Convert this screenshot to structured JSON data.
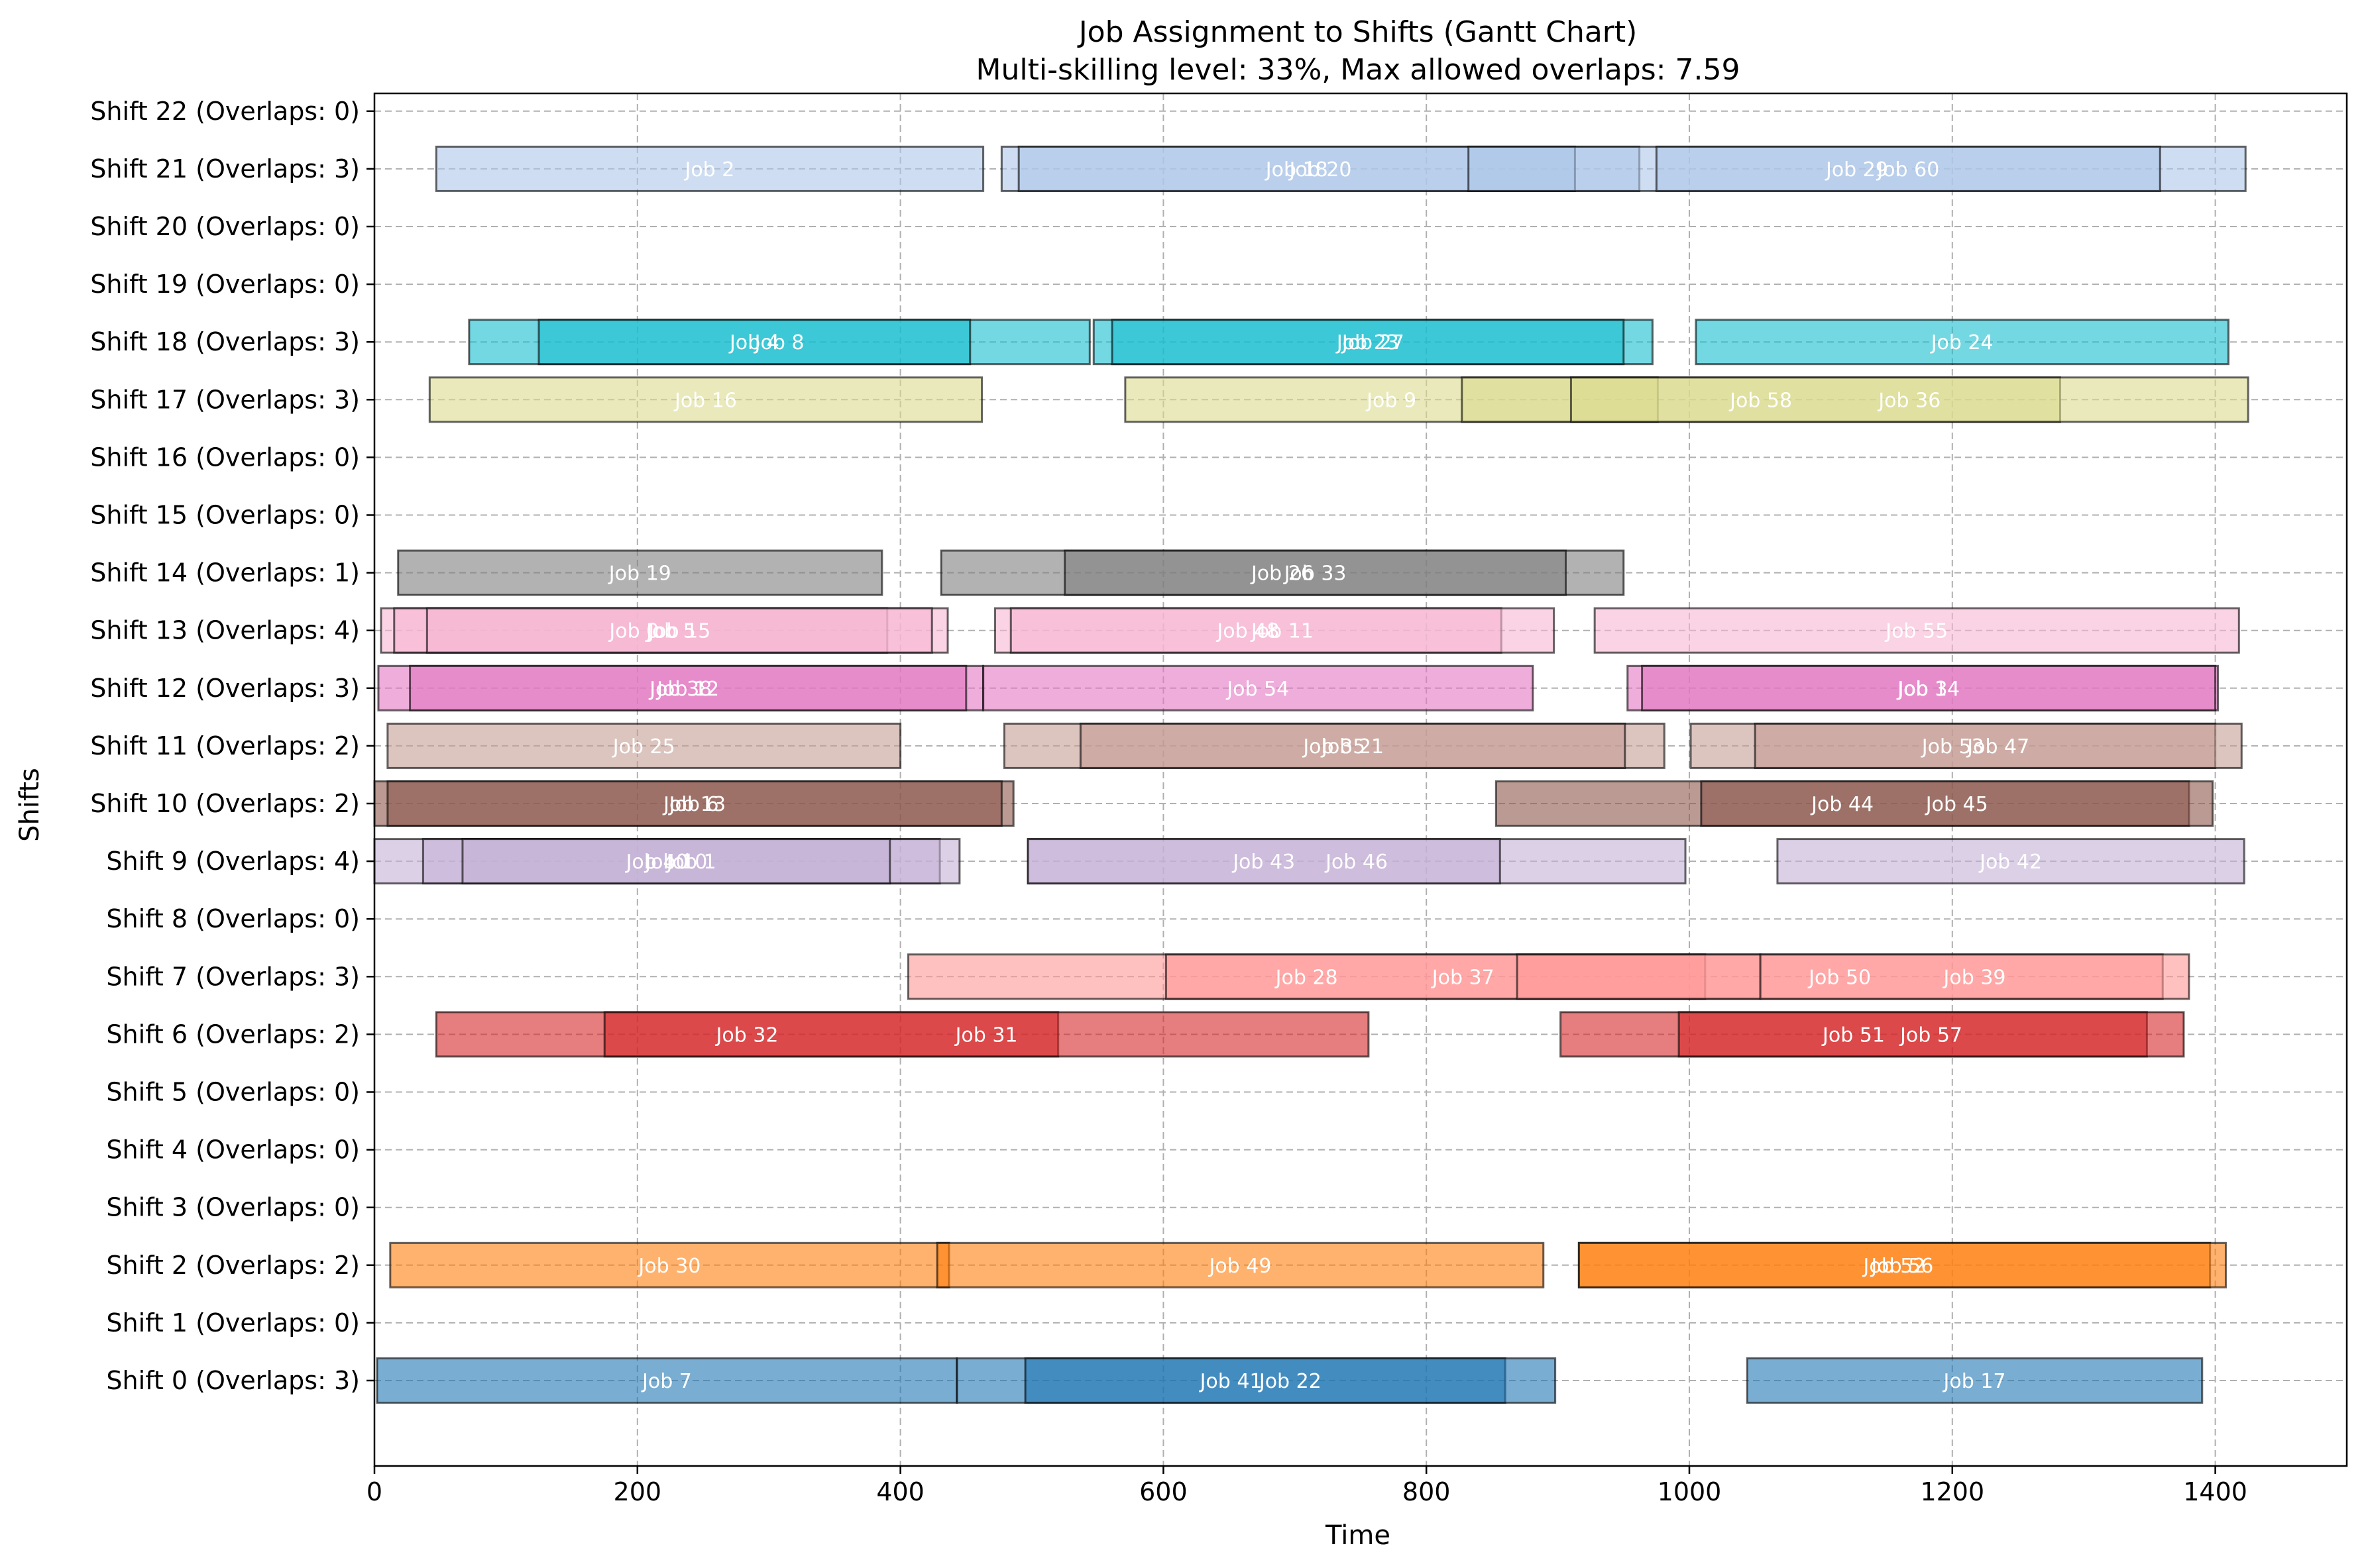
{
  "chart_data": {
    "type": "gantt",
    "title": "Job Assignment to Shifts (Gantt Chart)",
    "subtitle": "Multi-skilling level: 33%, Max allowed overlaps: 7.59",
    "xlabel": "Time",
    "ylabel": "Shifts",
    "xlim": [
      0,
      1500
    ],
    "xticks": [
      "0",
      "200",
      "400",
      "600",
      "800",
      "1000",
      "1200",
      "1400"
    ],
    "grid": true,
    "shifts": [
      {
        "shift": 0,
        "label": "Shift 0 (Overlaps: 3)",
        "color": "#1f77b4"
      },
      {
        "shift": 1,
        "label": "Shift 1 (Overlaps: 0)",
        "color": "#aec7e8"
      },
      {
        "shift": 2,
        "label": "Shift 2 (Overlaps: 2)",
        "color": "#ff7f0e"
      },
      {
        "shift": 3,
        "label": "Shift 3 (Overlaps: 0)",
        "color": "#ffbb78"
      },
      {
        "shift": 4,
        "label": "Shift 4 (Overlaps: 0)",
        "color": "#2ca02c"
      },
      {
        "shift": 5,
        "label": "Shift 5 (Overlaps: 0)",
        "color": "#98df8a"
      },
      {
        "shift": 6,
        "label": "Shift 6 (Overlaps: 2)",
        "color": "#d62728"
      },
      {
        "shift": 7,
        "label": "Shift 7 (Overlaps: 3)",
        "color": "#ff9896"
      },
      {
        "shift": 8,
        "label": "Shift 8 (Overlaps: 0)",
        "color": "#9467bd"
      },
      {
        "shift": 9,
        "label": "Shift 9 (Overlaps: 4)",
        "color": "#c5b0d5"
      },
      {
        "shift": 10,
        "label": "Shift 10 (Overlaps: 2)",
        "color": "#8c564b"
      },
      {
        "shift": 11,
        "label": "Shift 11 (Overlaps: 2)",
        "color": "#c49c94"
      },
      {
        "shift": 12,
        "label": "Shift 12 (Overlaps: 3)",
        "color": "#e377c2"
      },
      {
        "shift": 13,
        "label": "Shift 13 (Overlaps: 4)",
        "color": "#f7b6d2"
      },
      {
        "shift": 14,
        "label": "Shift 14 (Overlaps: 1)",
        "color": "#7f7f7f"
      },
      {
        "shift": 15,
        "label": "Shift 15 (Overlaps: 0)",
        "color": "#c7c7c7"
      },
      {
        "shift": 16,
        "label": "Shift 16 (Overlaps: 0)",
        "color": "#bcbd22"
      },
      {
        "shift": 17,
        "label": "Shift 17 (Overlaps: 3)",
        "color": "#dbdb8d"
      },
      {
        "shift": 18,
        "label": "Shift 18 (Overlaps: 3)",
        "color": "#17becf"
      },
      {
        "shift": 19,
        "label": "Shift 19 (Overlaps: 0)",
        "color": "#9edae5"
      },
      {
        "shift": 20,
        "label": "Shift 20 (Overlaps: 0)",
        "color": "#1f77b4"
      },
      {
        "shift": 21,
        "label": "Shift 21 (Overlaps: 3)",
        "color": "#aec7e8"
      },
      {
        "shift": 22,
        "label": "Shift 22 (Overlaps: 0)",
        "color": "#ff7f0e"
      }
    ],
    "jobs": [
      {
        "shift": 0,
        "job": "Job 7",
        "start": 2,
        "end": 443
      },
      {
        "shift": 0,
        "job": "Job 41",
        "start": 443,
        "end": 860
      },
      {
        "shift": 0,
        "job": "Job 22",
        "start": 495,
        "end": 898
      },
      {
        "shift": 0,
        "job": "Job 17",
        "start": 1044,
        "end": 1390
      },
      {
        "shift": 2,
        "job": "Job 30",
        "start": 12,
        "end": 437
      },
      {
        "shift": 2,
        "job": "Job 49",
        "start": 428,
        "end": 889
      },
      {
        "shift": 2,
        "job": "Job 52",
        "start": 916,
        "end": 1396
      },
      {
        "shift": 2,
        "job": "Job 56",
        "start": 916,
        "end": 1408
      },
      {
        "shift": 6,
        "job": "Job 32",
        "start": 47,
        "end": 520
      },
      {
        "shift": 6,
        "job": "Job 31",
        "start": 175,
        "end": 756
      },
      {
        "shift": 6,
        "job": "Job 51",
        "start": 902,
        "end": 1348
      },
      {
        "shift": 6,
        "job": "Job 57",
        "start": 992,
        "end": 1376
      },
      {
        "shift": 7,
        "job": "Job 28",
        "start": 406,
        "end": 1012
      },
      {
        "shift": 7,
        "job": "Job 37",
        "start": 602,
        "end": 1054
      },
      {
        "shift": 7,
        "job": "Job 50",
        "start": 869,
        "end": 1360
      },
      {
        "shift": 7,
        "job": "Job 39",
        "start": 1054,
        "end": 1380
      },
      {
        "shift": 9,
        "job": "Job 40",
        "start": 0,
        "end": 430
      },
      {
        "shift": 9,
        "job": "Job 1",
        "start": 37,
        "end": 445
      },
      {
        "shift": 9,
        "job": "Job 10",
        "start": 67,
        "end": 392
      },
      {
        "shift": 9,
        "job": "Job 46",
        "start": 497,
        "end": 997
      },
      {
        "shift": 9,
        "job": "Job 43",
        "start": 497,
        "end": 856
      },
      {
        "shift": 9,
        "job": "Job 42",
        "start": 1067,
        "end": 1422
      },
      {
        "shift": 10,
        "job": "Job 6",
        "start": 0,
        "end": 486
      },
      {
        "shift": 10,
        "job": "Job 13",
        "start": 10,
        "end": 477
      },
      {
        "shift": 10,
        "job": "Job 44",
        "start": 853,
        "end": 1380
      },
      {
        "shift": 10,
        "job": "Job 45",
        "start": 1009,
        "end": 1398
      },
      {
        "shift": 11,
        "job": "Job 25",
        "start": 10,
        "end": 400
      },
      {
        "shift": 11,
        "job": "Job 35",
        "start": 479,
        "end": 981
      },
      {
        "shift": 11,
        "job": "Job 21",
        "start": 537,
        "end": 951
      },
      {
        "shift": 11,
        "job": "Job 53",
        "start": 1001,
        "end": 1400
      },
      {
        "shift": 11,
        "job": "Job 47",
        "start": 1050,
        "end": 1420
      },
      {
        "shift": 12,
        "job": "Job 38",
        "start": 3,
        "end": 463
      },
      {
        "shift": 12,
        "job": "Job 12",
        "start": 27,
        "end": 450
      },
      {
        "shift": 12,
        "job": "Job 54",
        "start": 463,
        "end": 881
      },
      {
        "shift": 12,
        "job": "Job 3",
        "start": 953,
        "end": 1402
      },
      {
        "shift": 12,
        "job": "Job 14",
        "start": 964,
        "end": 1400
      },
      {
        "shift": 13,
        "job": "Job 0",
        "start": 5,
        "end": 390
      },
      {
        "shift": 13,
        "job": "Job 5",
        "start": 15,
        "end": 436
      },
      {
        "shift": 13,
        "job": "Job 15",
        "start": 40,
        "end": 424
      },
      {
        "shift": 13,
        "job": "Job 48",
        "start": 472,
        "end": 857
      },
      {
        "shift": 13,
        "job": "Job 11",
        "start": 484,
        "end": 897
      },
      {
        "shift": 13,
        "job": "Job 55",
        "start": 928,
        "end": 1418
      },
      {
        "shift": 14,
        "job": "Job 19",
        "start": 18,
        "end": 386
      },
      {
        "shift": 14,
        "job": "Job 26",
        "start": 431,
        "end": 950
      },
      {
        "shift": 14,
        "job": "Job 33",
        "start": 525,
        "end": 906
      },
      {
        "shift": 17,
        "job": "Job 16",
        "start": 42,
        "end": 462
      },
      {
        "shift": 17,
        "job": "Job 9",
        "start": 571,
        "end": 976
      },
      {
        "shift": 17,
        "job": "Job 58",
        "start": 827,
        "end": 1282
      },
      {
        "shift": 17,
        "job": "Job 36",
        "start": 910,
        "end": 1425
      },
      {
        "shift": 18,
        "job": "Job 8",
        "start": 72,
        "end": 544
      },
      {
        "shift": 18,
        "job": "Job 4",
        "start": 125,
        "end": 453
      },
      {
        "shift": 18,
        "job": "Job 27",
        "start": 547,
        "end": 972
      },
      {
        "shift": 18,
        "job": "Job 23",
        "start": 561,
        "end": 950
      },
      {
        "shift": 18,
        "job": "Job 24",
        "start": 1005,
        "end": 1410
      },
      {
        "shift": 21,
        "job": "Job 2",
        "start": 47,
        "end": 463
      },
      {
        "shift": 21,
        "job": "Job 20",
        "start": 477,
        "end": 962
      },
      {
        "shift": 21,
        "job": "Job 18",
        "start": 490,
        "end": 913
      },
      {
        "shift": 21,
        "job": "Job 29",
        "start": 832,
        "end": 1423
      },
      {
        "shift": 21,
        "job": "Job 60",
        "start": 975,
        "end": 1358
      }
    ]
  }
}
